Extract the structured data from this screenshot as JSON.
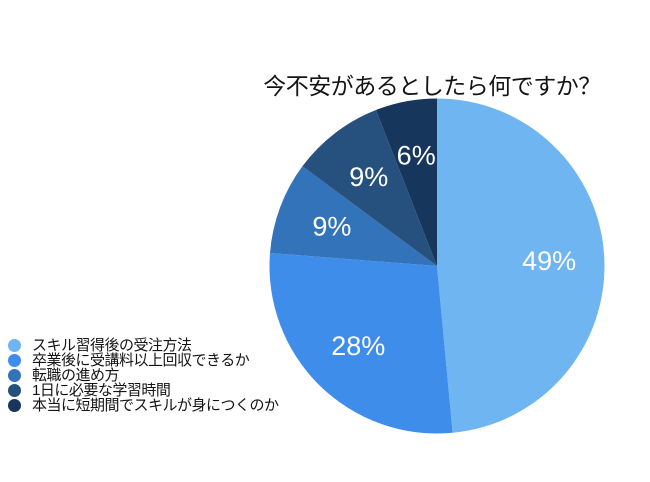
{
  "chart_data": {
    "type": "pie",
    "title": "今不安があるとしたら何ですか？",
    "direction": "clockwise",
    "start_angle": "12-oclock",
    "label_style": "percent-inside",
    "label_color": "#ffffff",
    "legend_position": "bottom-left",
    "background_color": "#ffffff",
    "slices": [
      {
        "label": "スキル習得後の受注方法",
        "value": 49,
        "percent_label": "49%",
        "color": "#6FB5F2"
      },
      {
        "label": "卒業後に受講料以上回収できるか",
        "value": 28,
        "percent_label": "28%",
        "color": "#3F8DEB"
      },
      {
        "label": "転職の進め方",
        "value": 9,
        "percent_label": "9%",
        "color": "#3373B9"
      },
      {
        "label": "1日に必要な学習時間",
        "value": 9,
        "percent_label": "9%",
        "color": "#26517F"
      },
      {
        "label": "本当に短期間でスキルが身につくのか",
        "value": 6,
        "percent_label": "6%",
        "color": "#17365C"
      }
    ]
  }
}
